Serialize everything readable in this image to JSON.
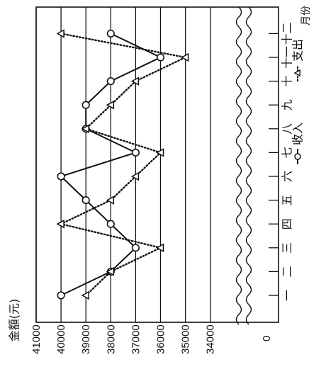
{
  "chart_data": {
    "type": "line",
    "ylabel": "金額(元)",
    "xlabel": "月份",
    "zero_label": "0",
    "y_ticks": [
      41000,
      40000,
      39000,
      38000,
      37000,
      36000,
      35000,
      34000
    ],
    "ylim": [
      34000,
      41000
    ],
    "axis_break": true,
    "grid": true,
    "legend_position": "top",
    "categories": [
      "一",
      "二",
      "三",
      "四",
      "五",
      "六",
      "七",
      "八",
      "九",
      "十",
      "十一",
      "十二"
    ],
    "series": [
      {
        "name": "收入",
        "style": "solid",
        "marker": "circle",
        "values": [
          40000,
          38000,
          37000,
          38000,
          39000,
          40000,
          37000,
          39000,
          39000,
          38000,
          36000,
          38000
        ]
      },
      {
        "name": "支出",
        "style": "dotted",
        "marker": "triangle",
        "values": [
          39000,
          38000,
          36000,
          40000,
          38000,
          37000,
          36000,
          39000,
          38000,
          37000,
          35000,
          40000
        ]
      }
    ],
    "colors": {
      "ink": "#111111",
      "background": "#ffffff"
    }
  }
}
